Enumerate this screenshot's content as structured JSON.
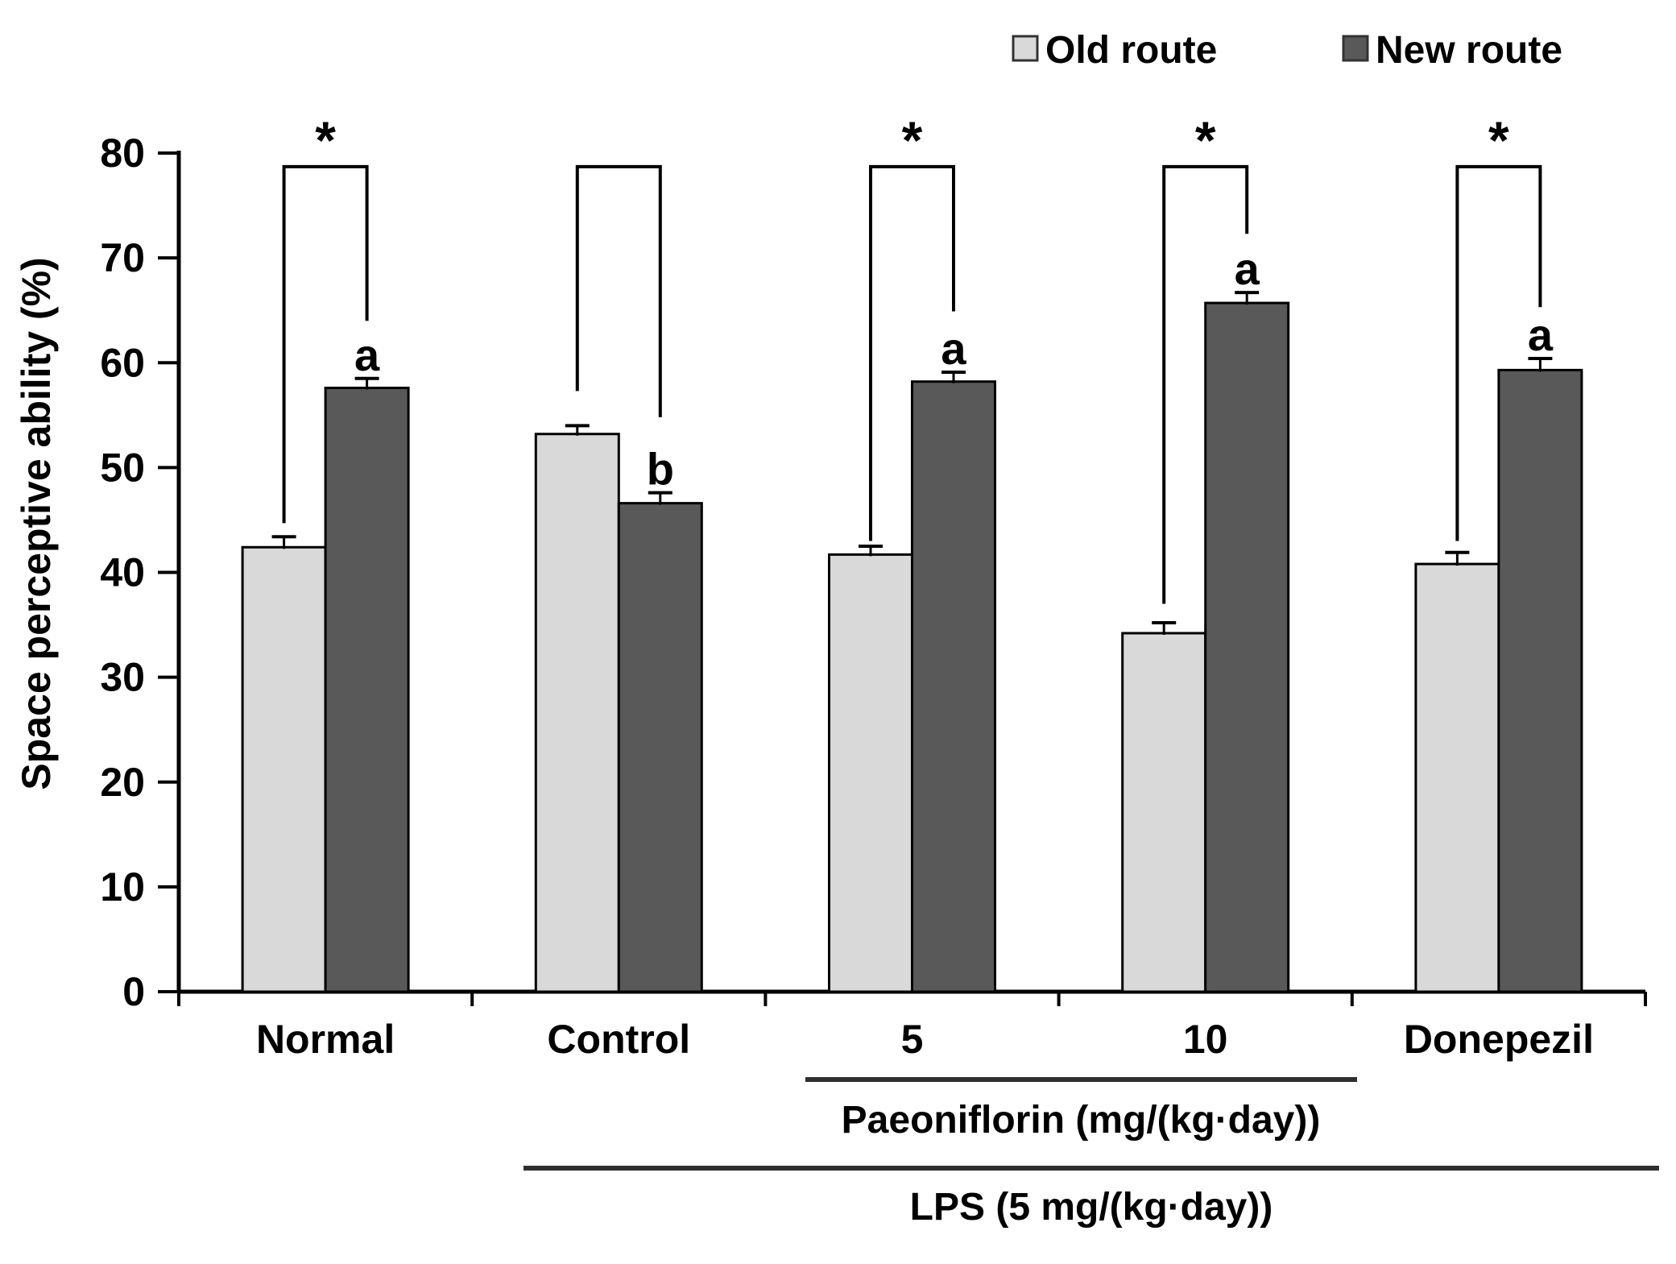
{
  "figure": {
    "background": "#ffffff"
  },
  "legend": {
    "items": [
      {
        "label": "Old route",
        "color": "#d9d9d9"
      },
      {
        "label": "New route",
        "color": "#595959"
      }
    ]
  },
  "chart_data": {
    "type": "bar",
    "title": "",
    "xlabel": "",
    "ylabel": "Space perceptive ability (%)",
    "ylim": [
      0,
      80
    ],
    "ytick_step": 10,
    "ytick_labels": [
      "0",
      "10",
      "20",
      "30",
      "40",
      "50",
      "60",
      "70",
      "80"
    ],
    "grid": false,
    "legend_position": "top-right",
    "categories": [
      "Normal",
      "Control",
      "5",
      "10",
      "Donepezil"
    ],
    "series": [
      {
        "name": "Old route",
        "color": "#d9d9d9",
        "values": [
          42.4,
          53.2,
          41.7,
          34.2,
          40.8
        ],
        "errors": [
          1.0,
          0.8,
          0.8,
          1.0,
          1.1
        ]
      },
      {
        "name": "New route",
        "color": "#595959",
        "values": [
          57.6,
          46.6,
          58.2,
          65.7,
          59.3
        ],
        "errors": [
          0.9,
          1.0,
          0.9,
          1.0,
          1.1
        ]
      }
    ],
    "bar_letters": [
      {
        "category": "Normal",
        "series": "New route",
        "letter": "a"
      },
      {
        "category": "Control",
        "series": "New route",
        "letter": "b"
      },
      {
        "category": "5",
        "series": "New route",
        "letter": "a"
      },
      {
        "category": "10",
        "series": "New route",
        "letter": "a"
      },
      {
        "category": "Donepezil",
        "series": "New route",
        "letter": "a"
      }
    ],
    "significance_brackets": [
      {
        "category": "Normal",
        "star": "*",
        "top": 78.7,
        "left_drop_to": 44.7,
        "right_drop_to": 64.0
      },
      {
        "category": "Control",
        "star": "",
        "top": 78.7,
        "left_drop_to": 57.3,
        "right_drop_to": 54.8
      },
      {
        "category": "5",
        "star": "*",
        "top": 78.7,
        "left_drop_to": 43.0,
        "right_drop_to": 64.9
      },
      {
        "category": "10",
        "star": "*",
        "top": 78.7,
        "left_drop_to": 37.0,
        "right_drop_to": 72.3
      },
      {
        "category": "Donepezil",
        "star": "*",
        "top": 78.7,
        "left_drop_to": 43.0,
        "right_drop_to": 65.3
      }
    ],
    "group_annotations": [
      {
        "label": "Paeoniflorin (mg/(kg·day))",
        "from_category": "5",
        "to_category": "10"
      },
      {
        "label": "LPS (5 mg/(kg·day))",
        "from_category": "Control",
        "to_category": "Donepezil"
      }
    ]
  }
}
